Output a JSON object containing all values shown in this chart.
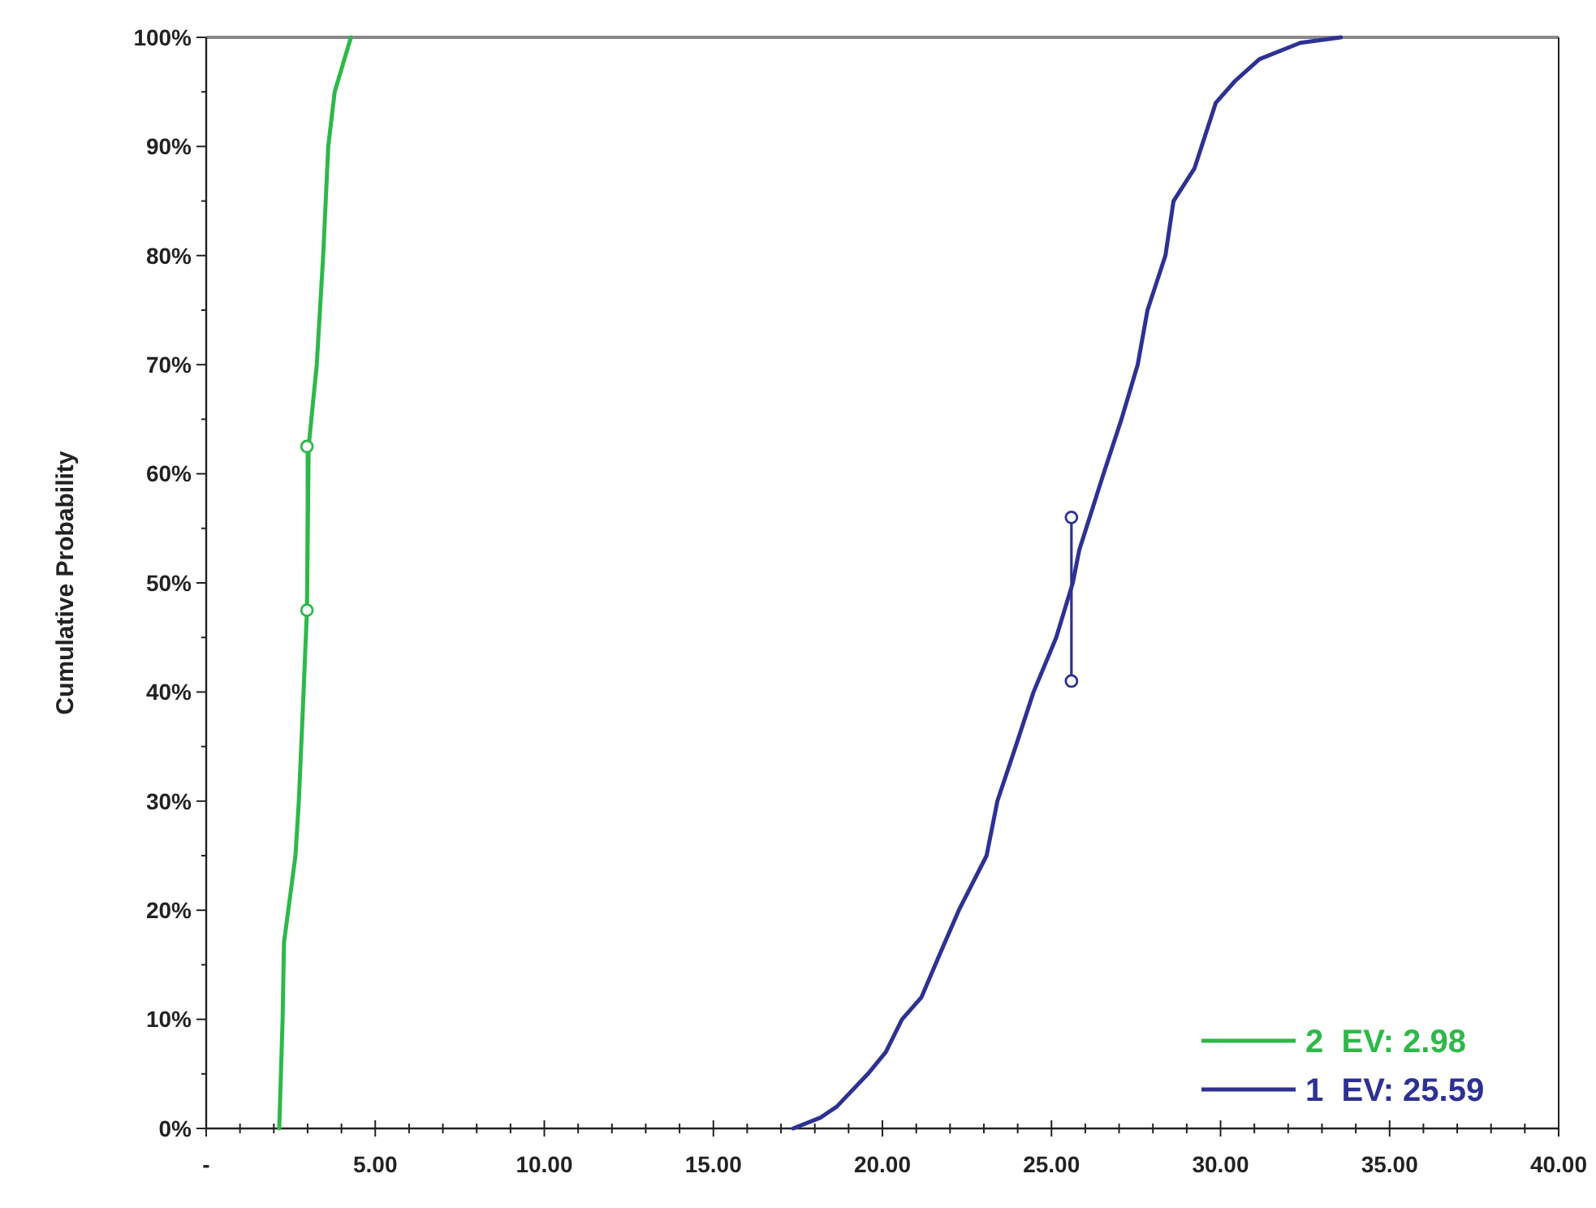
{
  "chart_data": {
    "type": "line",
    "ylabel": "Cumulative Probability",
    "xlim": [
      0,
      40
    ],
    "ylim": [
      0,
      100
    ],
    "xticks": [
      {
        "value": 0,
        "label": "-"
      },
      {
        "value": 1,
        "label": null
      },
      {
        "value": 2,
        "label": null
      },
      {
        "value": 3,
        "label": null
      },
      {
        "value": 4,
        "label": null
      },
      {
        "value": 5,
        "label": "5.00"
      },
      {
        "value": 6,
        "label": null
      },
      {
        "value": 7,
        "label": null
      },
      {
        "value": 8,
        "label": null
      },
      {
        "value": 9,
        "label": null
      },
      {
        "value": 10,
        "label": "10.00"
      },
      {
        "value": 11,
        "label": null
      },
      {
        "value": 12,
        "label": null
      },
      {
        "value": 13,
        "label": null
      },
      {
        "value": 14,
        "label": null
      },
      {
        "value": 15,
        "label": "15.00"
      },
      {
        "value": 16,
        "label": null
      },
      {
        "value": 17,
        "label": null
      },
      {
        "value": 18,
        "label": null
      },
      {
        "value": 19,
        "label": null
      },
      {
        "value": 20,
        "label": "20.00"
      },
      {
        "value": 21,
        "label": null
      },
      {
        "value": 22,
        "label": null
      },
      {
        "value": 23,
        "label": null
      },
      {
        "value": 24,
        "label": null
      },
      {
        "value": 25,
        "label": "25.00"
      },
      {
        "value": 26,
        "label": null
      },
      {
        "value": 27,
        "label": null
      },
      {
        "value": 28,
        "label": null
      },
      {
        "value": 29,
        "label": null
      },
      {
        "value": 30,
        "label": "30.00"
      },
      {
        "value": 31,
        "label": null
      },
      {
        "value": 32,
        "label": null
      },
      {
        "value": 33,
        "label": null
      },
      {
        "value": 34,
        "label": null
      },
      {
        "value": 35,
        "label": "35.00"
      },
      {
        "value": 36,
        "label": null
      },
      {
        "value": 37,
        "label": null
      },
      {
        "value": 38,
        "label": null
      },
      {
        "value": 39,
        "label": null
      },
      {
        "value": 40,
        "label": "40.00"
      }
    ],
    "yticks": [
      {
        "value": 0,
        "label": "0%"
      },
      {
        "value": 5,
        "label": null
      },
      {
        "value": 10,
        "label": "10%"
      },
      {
        "value": 15,
        "label": null
      },
      {
        "value": 20,
        "label": "20%"
      },
      {
        "value": 25,
        "label": null
      },
      {
        "value": 30,
        "label": "30%"
      },
      {
        "value": 35,
        "label": null
      },
      {
        "value": 40,
        "label": "40%"
      },
      {
        "value": 45,
        "label": null
      },
      {
        "value": 50,
        "label": "50%"
      },
      {
        "value": 55,
        "label": null
      },
      {
        "value": 60,
        "label": "60%"
      },
      {
        "value": 65,
        "label": null
      },
      {
        "value": 70,
        "label": "70%"
      },
      {
        "value": 75,
        "label": null
      },
      {
        "value": 80,
        "label": "80%"
      },
      {
        "value": 85,
        "label": null
      },
      {
        "value": 90,
        "label": "90%"
      },
      {
        "value": 95,
        "label": null
      },
      {
        "value": 100,
        "label": "100%"
      }
    ],
    "grid": false,
    "legend": "bottom right",
    "marker": "none",
    "line_style": "solid",
    "series": [
      {
        "name": "2  EV: 2.98",
        "color": "#2eb84a",
        "x": [
          2.16,
          2.26,
          2.3,
          2.64,
          2.74,
          2.88,
          2.98,
          3.03,
          3.27,
          3.46,
          3.61,
          3.8,
          4.28
        ],
        "values": [
          0,
          10,
          17,
          25,
          30,
          40,
          47.5,
          62.5,
          70,
          80,
          90,
          95,
          100
        ]
      },
      {
        "name": "1  EV: 25.59",
        "color": "#2e3192",
        "x": [
          17.36,
          18.17,
          18.65,
          19.57,
          20.1,
          20.58,
          21.15,
          21.7,
          22.26,
          23.08,
          23.4,
          23.94,
          24.47,
          25.14,
          25.63,
          25.82,
          26.54,
          27.07,
          27.55,
          27.84,
          28.37,
          28.61,
          29.23,
          29.86,
          30.43,
          31.15,
          32.36,
          33.56
        ],
        "values": [
          0,
          1,
          2,
          5,
          7,
          10,
          12,
          16,
          20,
          25,
          30,
          35,
          40,
          45,
          50,
          53,
          60,
          65,
          70,
          75,
          80,
          85,
          88,
          94,
          96,
          98,
          99.5,
          100
        ]
      },
      {
        "color": "#2eb84a",
        "marker": "circle",
        "x": [
          2.98,
          2.98
        ],
        "values": [
          47.5,
          62.5
        ]
      },
      {
        "color": "#2e3192",
        "marker": "circle",
        "x": [
          25.59,
          25.59
        ],
        "values": [
          41,
          56
        ]
      }
    ]
  }
}
